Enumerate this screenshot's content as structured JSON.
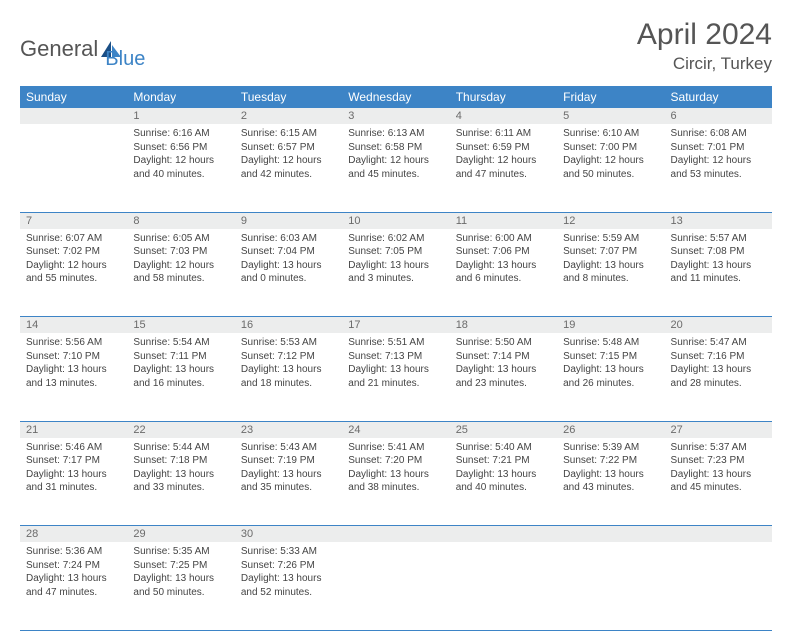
{
  "brand": {
    "part1": "General",
    "part2": "Blue"
  },
  "title": "April 2024",
  "location": "Circir, Turkey",
  "colors": {
    "header_bg": "#3d84c6",
    "header_text": "#ffffff",
    "daynum_bg": "#eceded",
    "daynum_text": "#6b6b6b",
    "body_text": "#444444",
    "title_text": "#555555",
    "rule": "#3d84c6"
  },
  "day_headers": [
    "Sunday",
    "Monday",
    "Tuesday",
    "Wednesday",
    "Thursday",
    "Friday",
    "Saturday"
  ],
  "weeks": [
    {
      "nums": [
        "",
        "1",
        "2",
        "3",
        "4",
        "5",
        "6"
      ],
      "cells": [
        null,
        {
          "sunrise": "6:16 AM",
          "sunset": "6:56 PM",
          "dl1": "12 hours",
          "dl2": "and 40 minutes."
        },
        {
          "sunrise": "6:15 AM",
          "sunset": "6:57 PM",
          "dl1": "12 hours",
          "dl2": "and 42 minutes."
        },
        {
          "sunrise": "6:13 AM",
          "sunset": "6:58 PM",
          "dl1": "12 hours",
          "dl2": "and 45 minutes."
        },
        {
          "sunrise": "6:11 AM",
          "sunset": "6:59 PM",
          "dl1": "12 hours",
          "dl2": "and 47 minutes."
        },
        {
          "sunrise": "6:10 AM",
          "sunset": "7:00 PM",
          "dl1": "12 hours",
          "dl2": "and 50 minutes."
        },
        {
          "sunrise": "6:08 AM",
          "sunset": "7:01 PM",
          "dl1": "12 hours",
          "dl2": "and 53 minutes."
        }
      ]
    },
    {
      "nums": [
        "7",
        "8",
        "9",
        "10",
        "11",
        "12",
        "13"
      ],
      "cells": [
        {
          "sunrise": "6:07 AM",
          "sunset": "7:02 PM",
          "dl1": "12 hours",
          "dl2": "and 55 minutes."
        },
        {
          "sunrise": "6:05 AM",
          "sunset": "7:03 PM",
          "dl1": "12 hours",
          "dl2": "and 58 minutes."
        },
        {
          "sunrise": "6:03 AM",
          "sunset": "7:04 PM",
          "dl1": "13 hours",
          "dl2": "and 0 minutes."
        },
        {
          "sunrise": "6:02 AM",
          "sunset": "7:05 PM",
          "dl1": "13 hours",
          "dl2": "and 3 minutes."
        },
        {
          "sunrise": "6:00 AM",
          "sunset": "7:06 PM",
          "dl1": "13 hours",
          "dl2": "and 6 minutes."
        },
        {
          "sunrise": "5:59 AM",
          "sunset": "7:07 PM",
          "dl1": "13 hours",
          "dl2": "and 8 minutes."
        },
        {
          "sunrise": "5:57 AM",
          "sunset": "7:08 PM",
          "dl1": "13 hours",
          "dl2": "and 11 minutes."
        }
      ]
    },
    {
      "nums": [
        "14",
        "15",
        "16",
        "17",
        "18",
        "19",
        "20"
      ],
      "cells": [
        {
          "sunrise": "5:56 AM",
          "sunset": "7:10 PM",
          "dl1": "13 hours",
          "dl2": "and 13 minutes."
        },
        {
          "sunrise": "5:54 AM",
          "sunset": "7:11 PM",
          "dl1": "13 hours",
          "dl2": "and 16 minutes."
        },
        {
          "sunrise": "5:53 AM",
          "sunset": "7:12 PM",
          "dl1": "13 hours",
          "dl2": "and 18 minutes."
        },
        {
          "sunrise": "5:51 AM",
          "sunset": "7:13 PM",
          "dl1": "13 hours",
          "dl2": "and 21 minutes."
        },
        {
          "sunrise": "5:50 AM",
          "sunset": "7:14 PM",
          "dl1": "13 hours",
          "dl2": "and 23 minutes."
        },
        {
          "sunrise": "5:48 AM",
          "sunset": "7:15 PM",
          "dl1": "13 hours",
          "dl2": "and 26 minutes."
        },
        {
          "sunrise": "5:47 AM",
          "sunset": "7:16 PM",
          "dl1": "13 hours",
          "dl2": "and 28 minutes."
        }
      ]
    },
    {
      "nums": [
        "21",
        "22",
        "23",
        "24",
        "25",
        "26",
        "27"
      ],
      "cells": [
        {
          "sunrise": "5:46 AM",
          "sunset": "7:17 PM",
          "dl1": "13 hours",
          "dl2": "and 31 minutes."
        },
        {
          "sunrise": "5:44 AM",
          "sunset": "7:18 PM",
          "dl1": "13 hours",
          "dl2": "and 33 minutes."
        },
        {
          "sunrise": "5:43 AM",
          "sunset": "7:19 PM",
          "dl1": "13 hours",
          "dl2": "and 35 minutes."
        },
        {
          "sunrise": "5:41 AM",
          "sunset": "7:20 PM",
          "dl1": "13 hours",
          "dl2": "and 38 minutes."
        },
        {
          "sunrise": "5:40 AM",
          "sunset": "7:21 PM",
          "dl1": "13 hours",
          "dl2": "and 40 minutes."
        },
        {
          "sunrise": "5:39 AM",
          "sunset": "7:22 PM",
          "dl1": "13 hours",
          "dl2": "and 43 minutes."
        },
        {
          "sunrise": "5:37 AM",
          "sunset": "7:23 PM",
          "dl1": "13 hours",
          "dl2": "and 45 minutes."
        }
      ]
    },
    {
      "nums": [
        "28",
        "29",
        "30",
        "",
        "",
        "",
        ""
      ],
      "cells": [
        {
          "sunrise": "5:36 AM",
          "sunset": "7:24 PM",
          "dl1": "13 hours",
          "dl2": "and 47 minutes."
        },
        {
          "sunrise": "5:35 AM",
          "sunset": "7:25 PM",
          "dl1": "13 hours",
          "dl2": "and 50 minutes."
        },
        {
          "sunrise": "5:33 AM",
          "sunset": "7:26 PM",
          "dl1": "13 hours",
          "dl2": "and 52 minutes."
        },
        null,
        null,
        null,
        null
      ]
    }
  ]
}
